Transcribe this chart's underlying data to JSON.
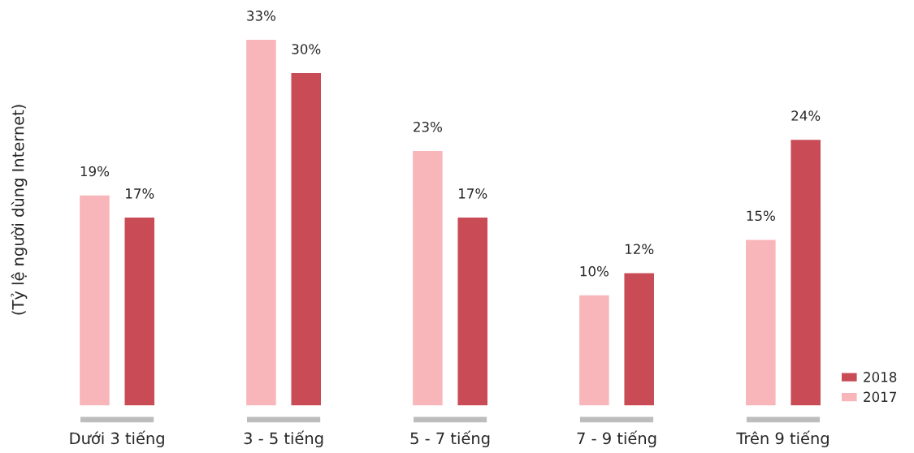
{
  "chart_data": {
    "type": "bar",
    "ylabel": "(Tỷ lệ người dùng Internet)",
    "categories": [
      "Dưới 3 tiếng",
      "3 - 5 tiếng",
      "5 - 7 tiếng",
      "7 - 9 tiếng",
      "Trên 9 tiếng"
    ],
    "series": [
      {
        "name": "2017",
        "color": "#f8b6ba",
        "values": [
          19,
          33,
          23,
          10,
          15
        ],
        "value_labels": [
          "19%",
          "33%",
          "23%",
          "10%",
          "15%"
        ]
      },
      {
        "name": "2018",
        "color": "#c84b56",
        "values": [
          17,
          30,
          17,
          12,
          24
        ],
        "value_labels": [
          "17%",
          "30%",
          "17%",
          "12%",
          "24%"
        ]
      }
    ],
    "tick_labels": "x",
    "legend": "bottom right",
    "grid": false
  }
}
